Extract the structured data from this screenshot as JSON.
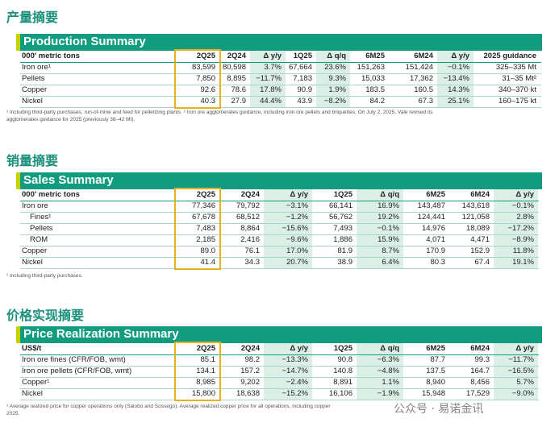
{
  "sections": [
    {
      "heading": "产量摘要",
      "title": "Production Summary",
      "header": [
        "000' metric tons",
        "2Q25",
        "2Q24",
        "Δ y/y",
        "1Q25",
        "Δ q/q",
        "6M25",
        "6M24",
        "Δ y/y",
        "2025 guidance"
      ],
      "rows": [
        [
          "Iron ore¹",
          "83,599",
          "80,598",
          "3.7%",
          "67,664",
          "23.6%",
          "151,263",
          "151,424",
          "−0.1%",
          "325–335 Mt"
        ],
        [
          "Pellets",
          "7,850",
          "8,895",
          "−11.7%",
          "7,183",
          "9.3%",
          "15,033",
          "17,362",
          "−13.4%",
          "31–35 Mt²"
        ],
        [
          "Copper",
          "92.6",
          "78.6",
          "17.8%",
          "90.9",
          "1.9%",
          "183.5",
          "160.5",
          "14.3%",
          "340–370 kt"
        ],
        [
          "Nickel",
          "40.3",
          "27.9",
          "44.4%",
          "43.9",
          "−8.2%",
          "84.2",
          "67.3",
          "25.1%",
          "160–175 kt"
        ]
      ],
      "footnote": [
        "¹ Including third-party purchases, run-of-mine and feed for pelletizing plants. ² Iron ore agglomerates guidance, including iron ore pellets and briquettes. On July 2, 2025, Vale revised its",
        "agglomerates guidance for 2025 (previously 38–42 Mt)."
      ]
    },
    {
      "heading": "销量摘要",
      "title": "Sales Summary",
      "header": [
        "000' metric tons",
        "2Q25",
        "2Q24",
        "Δ y/y",
        "1Q25",
        "Δ q/q",
        "6M25",
        "6M24",
        "Δ y/y"
      ],
      "rows": [
        [
          "Iron ore",
          "77,346",
          "79,792",
          "−3.1%",
          "66,141",
          "16.9%",
          "143,487",
          "143,618",
          "−0.1%"
        ],
        [
          "Fines¹",
          "67,678",
          "68,512",
          "−1.2%",
          "56,762",
          "19.2%",
          "124,441",
          "121,058",
          "2.8%"
        ],
        [
          "Pellets",
          "7,483",
          "8,864",
          "−15.6%",
          "7,493",
          "−0.1%",
          "14,976",
          "18,089",
          "−17.2%"
        ],
        [
          "ROM",
          "2,185",
          "2,416",
          "−9.6%",
          "1,886",
          "15.9%",
          "4,071",
          "4,471",
          "−8.9%"
        ],
        [
          "Copper",
          "89.0",
          "76.1",
          "17.0%",
          "81.9",
          "8.7%",
          "170.9",
          "152.9",
          "11.8%"
        ],
        [
          "Nickel",
          "41.4",
          "34.3",
          "20.7%",
          "38.9",
          "6.4%",
          "80.3",
          "67.4",
          "19.1%"
        ]
      ],
      "footnote": [
        "¹ Including third-party purchases."
      ]
    },
    {
      "heading": "价格实现摘要",
      "title": "Price Realization Summary",
      "header": [
        "US$/t",
        "2Q25",
        "2Q24",
        "Δ y/y",
        "1Q25",
        "Δ q/q",
        "6M25",
        "6M24",
        "Δ y/y"
      ],
      "rows": [
        [
          "Iron ore fines (CFR/FOB, wmt)",
          "85.1",
          "98.2",
          "−13.3%",
          "90.8",
          "−6.3%",
          "87.7",
          "99.3",
          "−11.7%"
        ],
        [
          "Iron ore pellets (CFR/FOB, wmt)",
          "134.1",
          "157.2",
          "−14.7%",
          "140.8",
          "−4.8%",
          "137.5",
          "164.7",
          "−16.5%"
        ],
        [
          "Copper¹",
          "8,985",
          "9,202",
          "−2.4%",
          "8,891",
          "1.1%",
          "8,940",
          "8,456",
          "5.7%"
        ],
        [
          "Nickel",
          "15,800",
          "18,638",
          "−15.2%",
          "16,106",
          "−1.9%",
          "15,948",
          "17,529",
          "−9.0%"
        ]
      ],
      "footnote": [
        "¹ Average realized price for copper operations only (Salobo and Sossego). Average realized copper price for all operations, including copper",
        "2025."
      ]
    }
  ],
  "watermark": "公众号 · 易诺金讯"
}
